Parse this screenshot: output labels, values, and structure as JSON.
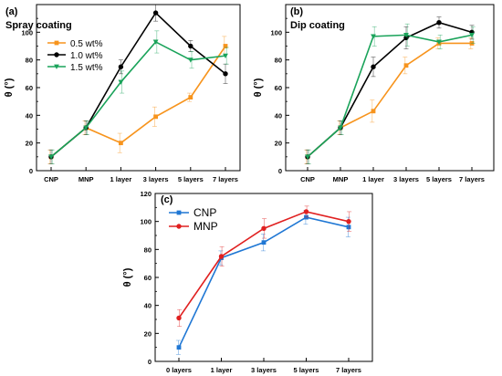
{
  "chart_data": [
    {
      "type": "line",
      "panel_label": "(a)",
      "title": "Spray coating",
      "ylabel": "θ (°)",
      "categories": [
        "CNP",
        "MNP",
        "1 layer",
        "3 layers",
        "5 layers",
        "7 layers"
      ],
      "ylim": [
        0,
        120
      ],
      "yticks": [
        0,
        20,
        40,
        60,
        80,
        100
      ],
      "legend_position": "top-left",
      "series": [
        {
          "name": "0.5 wt%",
          "color": "#f7941d",
          "marker": "square",
          "values": [
            10,
            31,
            20,
            39,
            53,
            90
          ],
          "errors": [
            5,
            5,
            7,
            7,
            3,
            7
          ]
        },
        {
          "name": "1.0 wt%",
          "color": "#000000",
          "marker": "circle",
          "values": [
            10,
            31,
            75,
            114,
            90,
            70
          ],
          "errors": [
            5,
            5,
            5,
            6,
            4,
            7
          ]
        },
        {
          "name": "1.5 wt%",
          "color": "#1aa35a",
          "marker": "triangle-down",
          "values": [
            10,
            31,
            64,
            93,
            80,
            83
          ],
          "errors": [
            5,
            5,
            8,
            8,
            6,
            6
          ]
        }
      ]
    },
    {
      "type": "line",
      "panel_label": "(b)",
      "title": "Dip coating",
      "ylabel": "θ (°)",
      "categories": [
        "CNP",
        "MNP",
        "1 layer",
        "3 layers",
        "5 layers",
        "7 layers"
      ],
      "ylim": [
        0,
        120
      ],
      "yticks": [
        0,
        20,
        40,
        60,
        80,
        100
      ],
      "series": [
        {
          "name": "0.5 wt%",
          "color": "#f7941d",
          "marker": "square",
          "values": [
            10,
            31,
            43,
            76,
            92,
            92
          ],
          "errors": [
            5,
            5,
            8,
            6,
            4,
            4
          ]
        },
        {
          "name": "1.0 wt%",
          "color": "#000000",
          "marker": "circle",
          "values": [
            10,
            31,
            75,
            96,
            107,
            100
          ],
          "errors": [
            5,
            5,
            7,
            8,
            4,
            5
          ]
        },
        {
          "name": "1.5 wt%",
          "color": "#1aa35a",
          "marker": "triangle-down",
          "values": [
            10,
            31,
            97,
            98,
            93,
            98
          ],
          "errors": [
            5,
            5,
            7,
            8,
            5,
            6
          ]
        }
      ]
    },
    {
      "type": "line",
      "panel_label": "(c)",
      "title": "",
      "ylabel": "θ (°)",
      "categories": [
        "0 layers",
        "1 layer",
        "3 layers",
        "5 layers",
        "7 layers"
      ],
      "ylim": [
        0,
        120
      ],
      "yticks": [
        0,
        20,
        40,
        60,
        80,
        100,
        120
      ],
      "legend_position": "top-left",
      "series": [
        {
          "name": "CNP",
          "color": "#1f77d4",
          "marker": "square",
          "values": [
            10,
            74,
            85,
            103,
            96
          ],
          "errors": [
            5,
            5,
            6,
            5,
            7
          ]
        },
        {
          "name": "MNP",
          "color": "#e02020",
          "marker": "circle",
          "values": [
            31,
            75,
            95,
            107,
            100
          ],
          "errors": [
            6,
            7,
            7,
            4,
            7
          ]
        }
      ]
    }
  ]
}
